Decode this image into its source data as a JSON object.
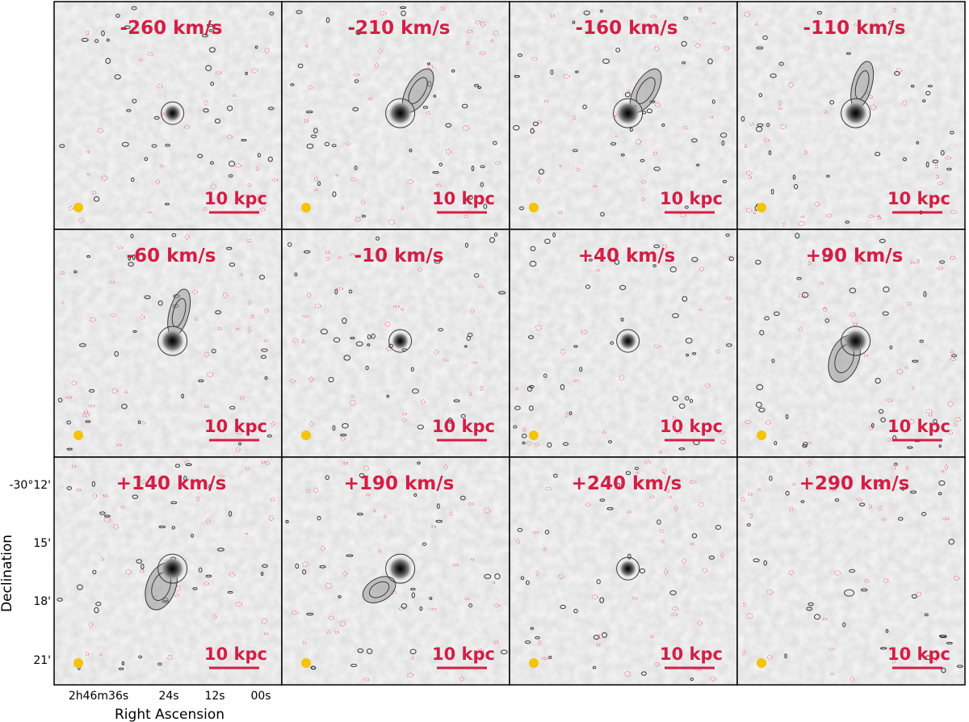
{
  "colors": {
    "label": "#d41e45",
    "beam": "#f5c400",
    "frame": "#000000",
    "contour_positive": "#3a3a3a",
    "contour_negative": "#f06a80",
    "background": "#f3f3f3"
  },
  "scale_bar_label": "10 kpc",
  "panels": [
    {
      "velocity": "-260 km/s",
      "source": "compact"
    },
    {
      "velocity": "-210 km/s",
      "source": "extended-ne"
    },
    {
      "velocity": "-160 km/s",
      "source": "extended-ne"
    },
    {
      "velocity": "-110 km/s",
      "source": "extended-n"
    },
    {
      "velocity": "-60 km/s",
      "source": "extended-n"
    },
    {
      "velocity": "-10 km/s",
      "source": "compact"
    },
    {
      "velocity": "+40 km/s",
      "source": "compact"
    },
    {
      "velocity": "+90 km/s",
      "source": "extended-s"
    },
    {
      "velocity": "+140 km/s",
      "source": "extended-s"
    },
    {
      "velocity": "+190 km/s",
      "source": "extended-sw"
    },
    {
      "velocity": "+240 km/s",
      "source": "compact"
    },
    {
      "velocity": "+290 km/s",
      "source": "none"
    }
  ],
  "axes": {
    "xlabel": "Right Ascension",
    "ylabel": "Declination",
    "x_ticks": [
      {
        "label": "2h46m36s"
      },
      {
        "label": "24s"
      },
      {
        "label": "12s"
      },
      {
        "label": "00s"
      }
    ],
    "y_ticks": [
      {
        "label": "-30°12'"
      },
      {
        "label": "15'"
      },
      {
        "label": "18'"
      },
      {
        "label": "21'"
      }
    ]
  }
}
